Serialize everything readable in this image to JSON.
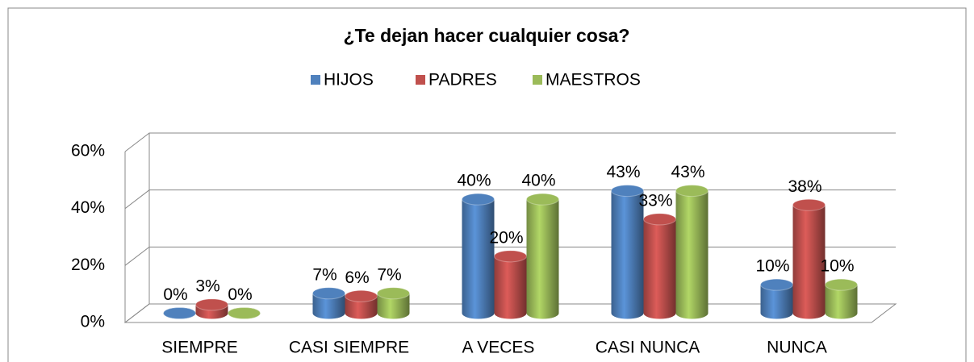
{
  "chart_data": {
    "type": "bar3d",
    "title": "¿Te dejan hacer cualquier cosa?",
    "categories": [
      "SIEMPRE",
      "CASI SIEMPRE",
      "A VECES",
      "CASI NUNCA",
      "NUNCA"
    ],
    "series": [
      {
        "name": "HIJOS",
        "color": "#4f81bd",
        "values": [
          0,
          7,
          40,
          43,
          10
        ],
        "value_labels": [
          "0%",
          "7%",
          "40%",
          "43%",
          "10%"
        ]
      },
      {
        "name": "PADRES",
        "color": "#c0504d",
        "values": [
          3,
          6,
          20,
          33,
          38
        ],
        "value_labels": [
          "3%",
          "6%",
          "20%",
          "33%",
          "38%"
        ]
      },
      {
        "name": "MAESTROS",
        "color": "#9bbb59",
        "values": [
          0,
          7,
          40,
          43,
          10
        ],
        "value_labels": [
          "0%",
          "7%",
          "40%",
          "43%",
          "10%"
        ]
      }
    ],
    "ylim": [
      0,
      60
    ],
    "yticks": [
      {
        "value": 0,
        "label": "0%"
      },
      {
        "value": 20,
        "label": "20%"
      },
      {
        "value": 40,
        "label": "40%"
      },
      {
        "value": 60,
        "label": "60%"
      }
    ],
    "grid": true,
    "legend": "top"
  }
}
